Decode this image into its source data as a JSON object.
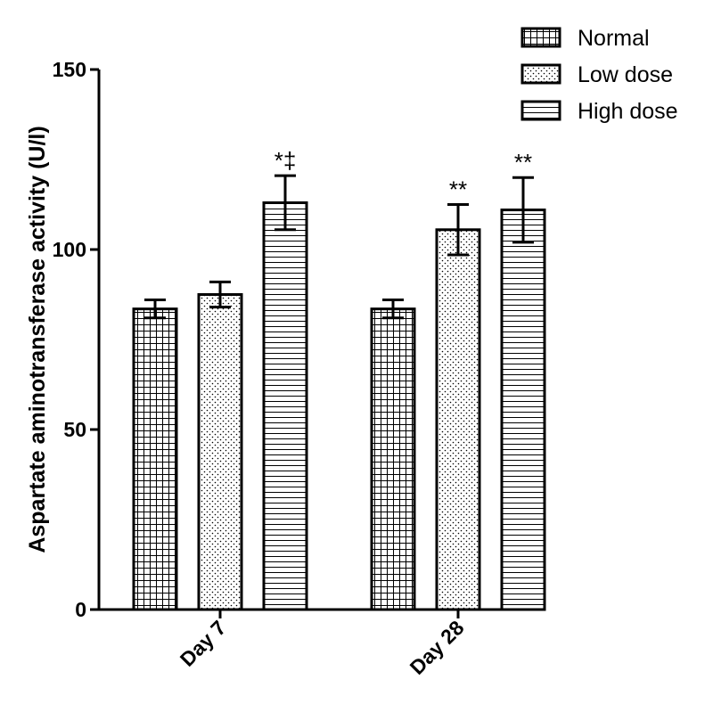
{
  "chart_data": {
    "type": "bar",
    "ylabel": "Aspartate aminotransferase activity (U/l)",
    "xlabel": "",
    "ylim": [
      0,
      150
    ],
    "yticks": [
      0,
      50,
      100,
      150
    ],
    "categories": [
      "Day 7",
      "Day 28"
    ],
    "series": [
      {
        "name": "Normal",
        "pattern": "grid",
        "values": [
          83.5,
          83.5
        ],
        "errors": [
          2.5,
          2.5
        ],
        "annotations": [
          "",
          ""
        ]
      },
      {
        "name": "Low dose",
        "pattern": "dots",
        "values": [
          87.5,
          105.5
        ],
        "errors": [
          3.5,
          7.0
        ],
        "annotations": [
          "",
          "**"
        ]
      },
      {
        "name": "High dose",
        "pattern": "hlines",
        "values": [
          113.0,
          111.0
        ],
        "errors": [
          7.5,
          9.0
        ],
        "annotations": [
          "*‡",
          "**"
        ]
      }
    ],
    "legend_position": "top-right",
    "grid": false
  }
}
